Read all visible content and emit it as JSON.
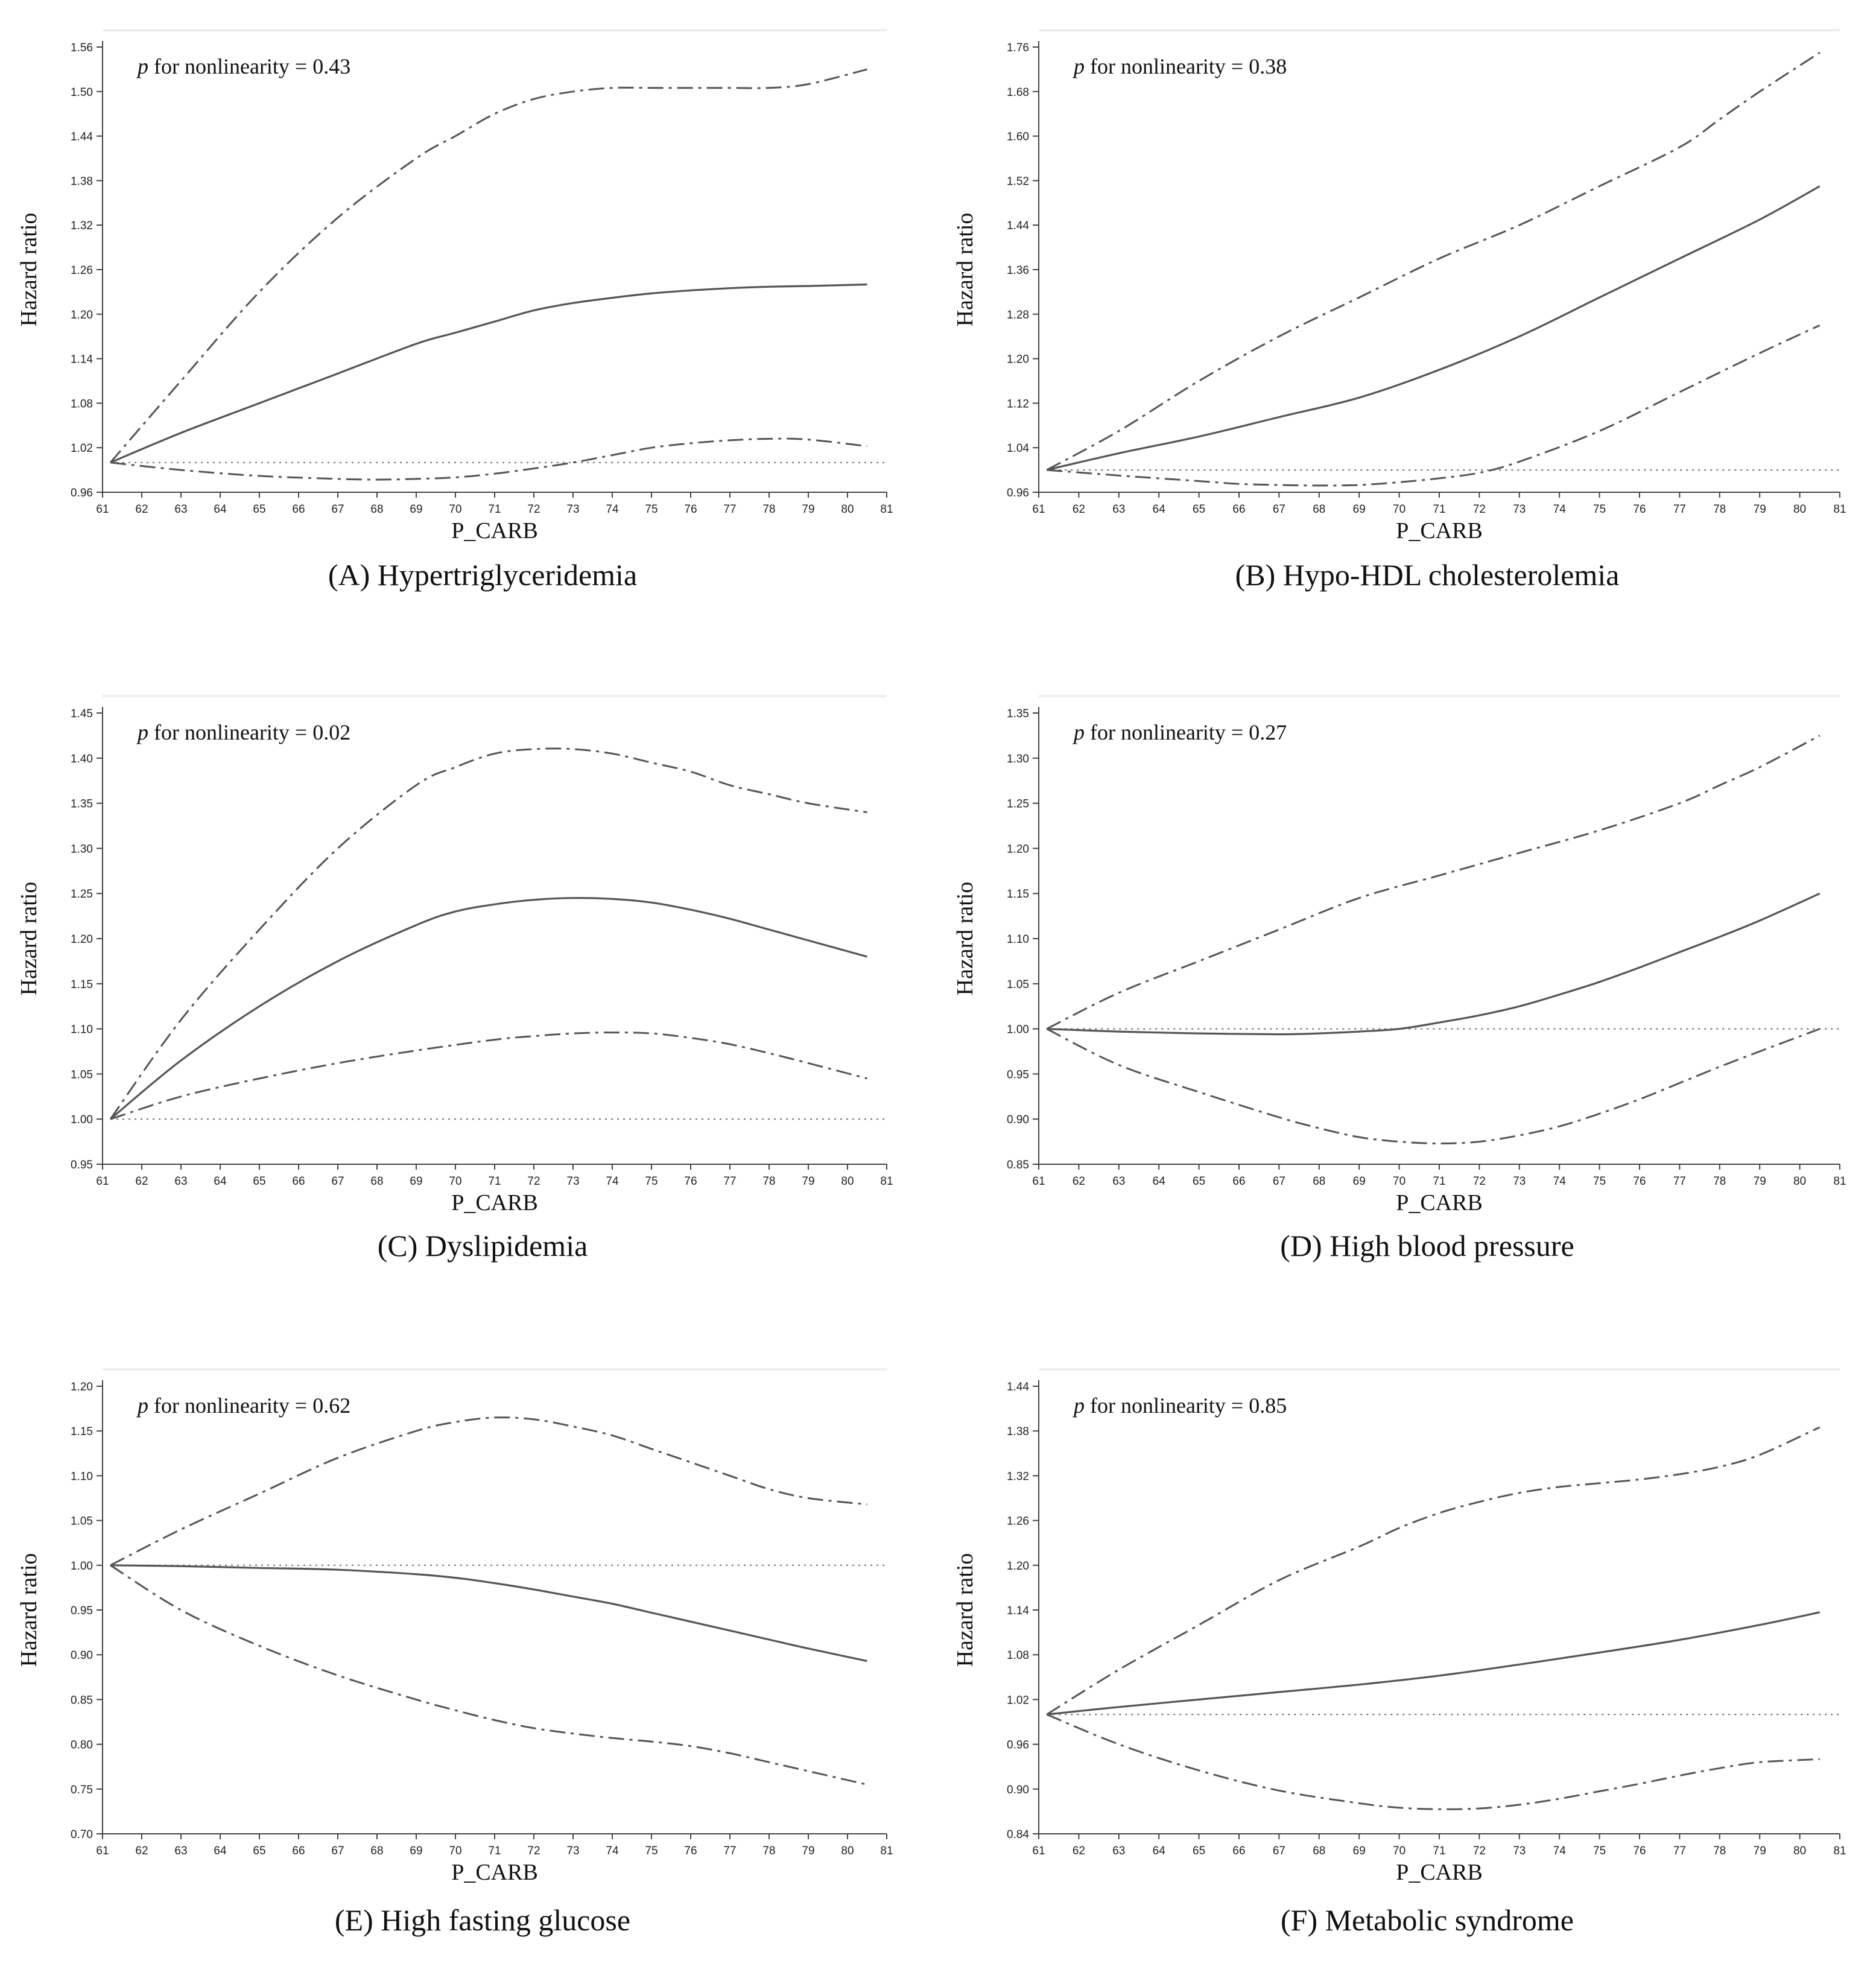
{
  "chart_data": [
    {
      "type": "line",
      "panel": "A",
      "caption": "(A) Hypertriglyceridemia",
      "annotation_p": "p",
      "annotation_rest": " for nonlinearity = 0.43",
      "xlabel": "P_CARB",
      "ylabel": "Hazard ratio",
      "xlim": [
        61,
        81
      ],
      "ylim": [
        0.96,
        1.56
      ],
      "yticks": [
        0.96,
        1.02,
        1.08,
        1.14,
        1.2,
        1.26,
        1.32,
        1.38,
        1.44,
        1.5,
        1.56
      ],
      "reference": 1.0,
      "series": [
        {
          "name": "upper 95% CI",
          "style": "ci",
          "x": [
            61.2,
            63,
            65,
            67,
            69,
            70,
            71,
            72,
            73,
            74,
            75,
            76,
            77,
            78,
            79,
            80.5
          ],
          "y": [
            1.0,
            1.11,
            1.23,
            1.33,
            1.41,
            1.44,
            1.47,
            1.49,
            1.5,
            1.505,
            1.505,
            1.505,
            1.505,
            1.505,
            1.51,
            1.53
          ]
        },
        {
          "name": "hazard ratio",
          "style": "estimate",
          "x": [
            61.2,
            63,
            65,
            67,
            69,
            70,
            71,
            72,
            73,
            74,
            75,
            76,
            77,
            78,
            79,
            80.5
          ],
          "y": [
            1.0,
            1.04,
            1.08,
            1.12,
            1.16,
            1.175,
            1.19,
            1.205,
            1.215,
            1.222,
            1.228,
            1.232,
            1.235,
            1.237,
            1.238,
            1.24
          ]
        },
        {
          "name": "lower 95% CI",
          "style": "ci",
          "x": [
            61.2,
            63,
            65,
            67,
            68,
            69,
            70,
            71,
            72,
            73,
            74,
            75,
            76,
            77,
            78,
            79,
            80.5
          ],
          "y": [
            1.0,
            0.99,
            0.982,
            0.978,
            0.977,
            0.978,
            0.98,
            0.985,
            0.992,
            1.0,
            1.01,
            1.02,
            1.026,
            1.03,
            1.032,
            1.031,
            1.022
          ]
        }
      ]
    },
    {
      "type": "line",
      "panel": "B",
      "caption": "(B) Hypo-HDL cholesterolemia",
      "annotation_p": "p",
      "annotation_rest": " for nonlinearity = 0.38",
      "xlabel": "P_CARB",
      "ylabel": "Hazard ratio",
      "xlim": [
        61,
        81
      ],
      "ylim": [
        0.96,
        1.76
      ],
      "yticks": [
        0.96,
        1.04,
        1.12,
        1.2,
        1.28,
        1.36,
        1.44,
        1.52,
        1.6,
        1.68,
        1.76
      ],
      "reference": 1.0,
      "series": [
        {
          "name": "upper 95% CI",
          "style": "ci",
          "x": [
            61.2,
            63,
            65,
            67,
            69,
            71,
            73,
            75,
            77,
            78,
            79,
            80.5
          ],
          "y": [
            1.0,
            1.07,
            1.16,
            1.24,
            1.31,
            1.38,
            1.44,
            1.51,
            1.58,
            1.63,
            1.68,
            1.75
          ]
        },
        {
          "name": "hazard ratio",
          "style": "estimate",
          "x": [
            61.2,
            63,
            65,
            67,
            69,
            71,
            73,
            75,
            77,
            79,
            80.5
          ],
          "y": [
            1.0,
            1.03,
            1.06,
            1.095,
            1.13,
            1.18,
            1.24,
            1.31,
            1.38,
            1.45,
            1.51
          ]
        },
        {
          "name": "lower 95% CI",
          "style": "ci",
          "x": [
            61.2,
            63,
            65,
            66,
            67,
            68,
            69,
            70,
            71,
            72,
            73,
            75,
            77,
            79,
            80.5
          ],
          "y": [
            1.0,
            0.99,
            0.98,
            0.975,
            0.973,
            0.972,
            0.973,
            0.978,
            0.985,
            0.995,
            1.015,
            1.07,
            1.14,
            1.21,
            1.26
          ]
        }
      ]
    },
    {
      "type": "line",
      "panel": "C",
      "caption": "(C) Dyslipidemia",
      "annotation_p": "p",
      "annotation_rest": " for nonlinearity = 0.02",
      "xlabel": "P_CARB",
      "ylabel": "Hazard ratio",
      "xlim": [
        61,
        81
      ],
      "ylim": [
        0.95,
        1.45
      ],
      "yticks": [
        0.95,
        1.0,
        1.05,
        1.1,
        1.15,
        1.2,
        1.25,
        1.3,
        1.35,
        1.4,
        1.45
      ],
      "reference": 1.0,
      "series": [
        {
          "name": "upper 95% CI",
          "style": "ci",
          "x": [
            61.2,
            63,
            65,
            67,
            69,
            70,
            71,
            72,
            73,
            74,
            75,
            76,
            77,
            78,
            79,
            80.5
          ],
          "y": [
            1.0,
            1.11,
            1.21,
            1.3,
            1.37,
            1.39,
            1.405,
            1.41,
            1.41,
            1.405,
            1.395,
            1.385,
            1.37,
            1.36,
            1.35,
            1.34
          ]
        },
        {
          "name": "hazard ratio",
          "style": "estimate",
          "x": [
            61.2,
            63,
            65,
            67,
            69,
            70,
            71,
            72,
            73,
            74,
            75,
            76,
            77,
            78,
            79,
            80.5
          ],
          "y": [
            1.0,
            1.065,
            1.125,
            1.175,
            1.215,
            1.23,
            1.238,
            1.243,
            1.245,
            1.244,
            1.24,
            1.232,
            1.222,
            1.21,
            1.198,
            1.18
          ]
        },
        {
          "name": "lower 95% CI",
          "style": "ci",
          "x": [
            61.2,
            63,
            65,
            67,
            69,
            71,
            72,
            73,
            74,
            75,
            76,
            77,
            78,
            79,
            80.5
          ],
          "y": [
            1.0,
            1.025,
            1.045,
            1.062,
            1.076,
            1.088,
            1.092,
            1.095,
            1.096,
            1.095,
            1.09,
            1.083,
            1.073,
            1.062,
            1.045
          ]
        }
      ]
    },
    {
      "type": "line",
      "panel": "D",
      "caption": "(D) High blood pressure",
      "annotation_p": "p",
      "annotation_rest": " for nonlinearity = 0.27",
      "xlabel": "P_CARB",
      "ylabel": "Hazard ratio",
      "xlim": [
        61,
        81
      ],
      "ylim": [
        0.85,
        1.35
      ],
      "yticks": [
        0.85,
        0.9,
        0.95,
        1.0,
        1.05,
        1.1,
        1.15,
        1.2,
        1.25,
        1.3,
        1.35
      ],
      "reference": 1.0,
      "series": [
        {
          "name": "upper 95% CI",
          "style": "ci",
          "x": [
            61.2,
            63,
            65,
            67,
            69,
            71,
            73,
            75,
            77,
            78,
            79,
            80.5
          ],
          "y": [
            1.0,
            1.04,
            1.075,
            1.11,
            1.145,
            1.17,
            1.195,
            1.22,
            1.25,
            1.27,
            1.29,
            1.325
          ]
        },
        {
          "name": "hazard ratio",
          "style": "estimate",
          "x": [
            61.2,
            63,
            65,
            67,
            68,
            69,
            70,
            71,
            72,
            73,
            74,
            75,
            76,
            77,
            78,
            79,
            80.5
          ],
          "y": [
            1.0,
            0.997,
            0.995,
            0.994,
            0.995,
            0.997,
            1.0,
            1.007,
            1.015,
            1.025,
            1.038,
            1.052,
            1.068,
            1.085,
            1.102,
            1.12,
            1.15
          ]
        },
        {
          "name": "lower 95% CI",
          "style": "ci",
          "x": [
            61.2,
            63,
            65,
            67,
            68,
            69,
            70,
            71,
            72,
            73,
            74,
            75,
            76,
            77,
            78,
            79,
            80.5
          ],
          "y": [
            1.0,
            0.96,
            0.93,
            0.902,
            0.89,
            0.88,
            0.875,
            0.873,
            0.875,
            0.882,
            0.892,
            0.906,
            0.922,
            0.94,
            0.958,
            0.975,
            1.0
          ]
        }
      ]
    },
    {
      "type": "line",
      "panel": "E",
      "caption": "(E) High fasting glucose",
      "annotation_p": "p",
      "annotation_rest": " for nonlinearity = 0.62",
      "xlabel": "P_CARB",
      "ylabel": "Hazard ratio",
      "xlim": [
        61,
        81
      ],
      "ylim": [
        0.7,
        1.2
      ],
      "yticks": [
        0.7,
        0.75,
        0.8,
        0.85,
        0.9,
        0.95,
        1.0,
        1.05,
        1.1,
        1.15,
        1.2
      ],
      "reference": 1.0,
      "series": [
        {
          "name": "upper 95% CI",
          "style": "ci",
          "x": [
            61.2,
            63,
            65,
            67,
            69,
            70,
            71,
            72,
            73,
            74,
            75,
            76,
            77,
            78,
            79,
            80.5
          ],
          "y": [
            1.0,
            1.04,
            1.08,
            1.12,
            1.15,
            1.16,
            1.165,
            1.163,
            1.155,
            1.145,
            1.13,
            1.115,
            1.1,
            1.085,
            1.075,
            1.068
          ]
        },
        {
          "name": "hazard ratio",
          "style": "estimate",
          "x": [
            61.2,
            63,
            65,
            67,
            69,
            70,
            71,
            72,
            73,
            74,
            75,
            76,
            77,
            78,
            79,
            80.5
          ],
          "y": [
            1.0,
            0.999,
            0.997,
            0.995,
            0.99,
            0.986,
            0.98,
            0.973,
            0.965,
            0.957,
            0.947,
            0.937,
            0.927,
            0.917,
            0.907,
            0.893
          ]
        },
        {
          "name": "lower 95% CI",
          "style": "ci",
          "x": [
            61.2,
            63,
            65,
            67,
            69,
            70,
            71,
            72,
            73,
            74,
            75,
            76,
            77,
            78,
            79,
            80.5
          ],
          "y": [
            1.0,
            0.95,
            0.91,
            0.877,
            0.85,
            0.838,
            0.827,
            0.818,
            0.812,
            0.807,
            0.803,
            0.798,
            0.79,
            0.78,
            0.77,
            0.755
          ]
        }
      ]
    },
    {
      "type": "line",
      "panel": "F",
      "caption": "(F) Metabolic syndrome",
      "annotation_p": "p",
      "annotation_rest": " for nonlinearity = 0.85",
      "xlabel": "P_CARB",
      "ylabel": "Hazard ratio",
      "xlim": [
        61,
        81
      ],
      "ylim": [
        0.84,
        1.44
      ],
      "yticks": [
        0.84,
        0.9,
        0.96,
        1.02,
        1.08,
        1.14,
        1.2,
        1.26,
        1.32,
        1.38,
        1.44
      ],
      "reference": 1.0,
      "series": [
        {
          "name": "upper 95% CI",
          "style": "ci",
          "x": [
            61.2,
            63,
            65,
            67,
            69,
            70,
            71,
            72,
            73,
            74,
            75,
            76,
            77,
            78,
            79,
            80.5
          ],
          "y": [
            1.0,
            1.06,
            1.12,
            1.18,
            1.225,
            1.25,
            1.27,
            1.285,
            1.297,
            1.305,
            1.31,
            1.315,
            1.322,
            1.332,
            1.348,
            1.385
          ]
        },
        {
          "name": "hazard ratio",
          "style": "estimate",
          "x": [
            61.2,
            63,
            65,
            67,
            69,
            71,
            73,
            75,
            77,
            79,
            80.5
          ],
          "y": [
            1.0,
            1.01,
            1.02,
            1.03,
            1.04,
            1.052,
            1.067,
            1.083,
            1.1,
            1.12,
            1.137
          ]
        },
        {
          "name": "lower 95% CI",
          "style": "ci",
          "x": [
            61.2,
            63,
            65,
            67,
            69,
            70,
            71,
            72,
            73,
            74,
            75,
            76,
            77,
            78,
            79,
            80.5
          ],
          "y": [
            1.0,
            0.96,
            0.925,
            0.898,
            0.881,
            0.875,
            0.873,
            0.874,
            0.879,
            0.887,
            0.897,
            0.907,
            0.918,
            0.928,
            0.936,
            0.94
          ]
        }
      ]
    }
  ]
}
